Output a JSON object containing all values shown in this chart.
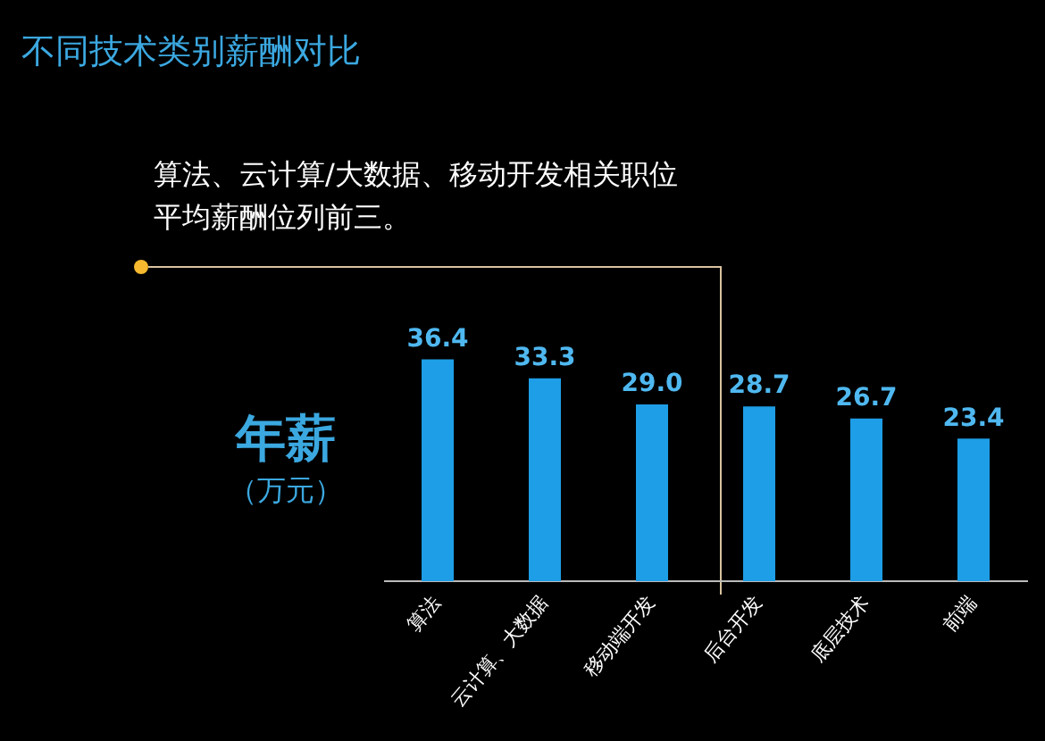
{
  "chart_data": {
    "type": "bar",
    "title": "不同技术类别薪酬对比",
    "ylabel": "年薪（万元）",
    "annotations": [
      "算法、云计算/大数据、移动开发相关职位平均薪酬位列前三。"
    ],
    "categories": [
      "算法",
      "云计算、大数据",
      "移动端开发",
      "后台开发",
      "底层技术",
      "前端"
    ],
    "values": [
      36.4,
      33.3,
      29.0,
      28.7,
      26.7,
      23.4
    ],
    "color": "#1e9ee6",
    "value_labels": [
      "36.4",
      "33.3",
      "29.0",
      "28.7",
      "26.7",
      "23.4"
    ]
  }
}
